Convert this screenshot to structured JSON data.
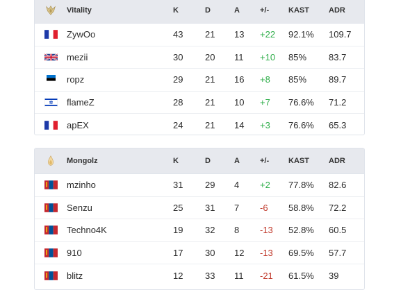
{
  "columns": {
    "k": "K",
    "d": "D",
    "a": "A",
    "pm": "+/-",
    "kast": "KAST",
    "adr": "ADR"
  },
  "colors": {
    "positive": "#2fae4a",
    "negative": "#c0392b",
    "header_bg": "#e7e9ee"
  },
  "teams": [
    {
      "name": "Vitality",
      "logo_icon": "vitality-bee-icon",
      "players": [
        {
          "name": "ZywOo",
          "flag": "france-flag-icon",
          "k": "43",
          "d": "21",
          "a": "13",
          "pm": "+22",
          "kast": "92.1%",
          "adr": "109.7"
        },
        {
          "name": "mezii",
          "flag": "uk-flag-icon",
          "k": "30",
          "d": "20",
          "a": "11",
          "pm": "+10",
          "kast": "85%",
          "adr": "83.7"
        },
        {
          "name": "ropz",
          "flag": "estonia-flag-icon",
          "k": "29",
          "d": "21",
          "a": "16",
          "pm": "+8",
          "kast": "85%",
          "adr": "89.7"
        },
        {
          "name": "flameZ",
          "flag": "israel-flag-icon",
          "k": "28",
          "d": "21",
          "a": "10",
          "pm": "+7",
          "kast": "76.6%",
          "adr": "71.2"
        },
        {
          "name": "apEX",
          "flag": "france-flag-icon",
          "k": "24",
          "d": "21",
          "a": "14",
          "pm": "+3",
          "kast": "76.6%",
          "adr": "65.3"
        }
      ]
    },
    {
      "name": "Mongolz",
      "logo_icon": "mongolz-flame-icon",
      "players": [
        {
          "name": "mzinho",
          "flag": "mongolia-flag-icon",
          "k": "31",
          "d": "29",
          "a": "4",
          "pm": "+2",
          "kast": "77.8%",
          "adr": "82.6"
        },
        {
          "name": "Senzu",
          "flag": "mongolia-flag-icon",
          "k": "25",
          "d": "31",
          "a": "7",
          "pm": "-6",
          "kast": "58.8%",
          "adr": "72.2"
        },
        {
          "name": "Techno4K",
          "flag": "mongolia-flag-icon",
          "k": "19",
          "d": "32",
          "a": "8",
          "pm": "-13",
          "kast": "52.8%",
          "adr": "60.5"
        },
        {
          "name": "910",
          "flag": "mongolia-flag-icon",
          "k": "17",
          "d": "30",
          "a": "12",
          "pm": "-13",
          "kast": "69.5%",
          "adr": "57.7"
        },
        {
          "name": "blitz",
          "flag": "mongolia-flag-icon",
          "k": "12",
          "d": "33",
          "a": "11",
          "pm": "-21",
          "kast": "61.5%",
          "adr": "39"
        }
      ]
    }
  ]
}
